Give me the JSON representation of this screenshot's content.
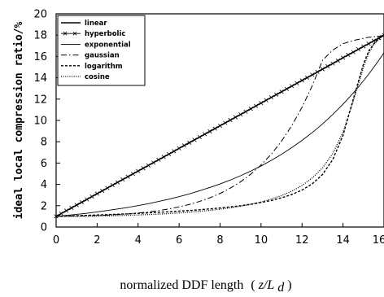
{
  "chart_data": {
    "type": "line",
    "title": "",
    "xlabel": {
      "prefix": "normalized DDF length",
      "open": "(",
      "var": "z/L",
      "sub": "d",
      "close": ")"
    },
    "ylabel": "ideal local compression ratio/%",
    "xlim": [
      0,
      16
    ],
    "ylim": [
      0,
      20
    ],
    "x_ticks": [
      "0",
      "2",
      "4",
      "6",
      "8",
      "10",
      "12",
      "14",
      "16"
    ],
    "y_ticks": [
      "0",
      "2",
      "4",
      "6",
      "8",
      "10",
      "12",
      "14",
      "16",
      "18",
      "20"
    ],
    "grid": false,
    "legend_position": "top-left",
    "x": [
      0,
      0.5,
      1,
      1.5,
      2,
      2.5,
      3,
      3.5,
      4,
      4.5,
      5,
      5.5,
      6,
      6.5,
      7,
      7.5,
      8,
      8.5,
      9,
      9.5,
      10,
      10.5,
      11,
      11.5,
      12,
      12.5,
      13,
      13.5,
      14,
      14.5,
      15,
      15.25,
      15.5,
      15.75,
      16
    ],
    "series": [
      {
        "name": "linear",
        "style": "solid-thick",
        "values": [
          1,
          1.53,
          2.06,
          2.59,
          3.13,
          3.66,
          4.19,
          4.72,
          5.25,
          5.78,
          6.31,
          6.84,
          7.38,
          7.91,
          8.44,
          8.97,
          9.5,
          10.03,
          10.56,
          11.09,
          11.63,
          12.16,
          12.69,
          13.22,
          13.75,
          14.28,
          14.81,
          15.34,
          15.88,
          16.41,
          16.94,
          17.2,
          17.47,
          17.73,
          18
        ]
      },
      {
        "name": "hyperbolic",
        "style": "cross-marker",
        "values": [
          1,
          1.53,
          2.06,
          2.59,
          3.13,
          3.66,
          4.19,
          4.72,
          5.25,
          5.78,
          6.31,
          6.84,
          7.38,
          7.91,
          8.44,
          8.97,
          9.5,
          10.03,
          10.56,
          11.09,
          11.63,
          12.16,
          12.69,
          13.22,
          13.75,
          14.28,
          14.81,
          15.34,
          15.88,
          16.41,
          16.94,
          17.2,
          17.47,
          17.73,
          18
        ]
      },
      {
        "name": "exponential",
        "style": "solid-thin",
        "values": [
          1,
          1.09,
          1.19,
          1.29,
          1.42,
          1.55,
          1.69,
          1.84,
          2.01,
          2.19,
          2.4,
          2.61,
          2.85,
          3.11,
          3.4,
          3.71,
          4.04,
          4.41,
          4.81,
          5.25,
          5.73,
          6.25,
          6.82,
          7.45,
          8.13,
          8.86,
          9.67,
          10.56,
          11.52,
          12.57,
          13.72,
          14.33,
          14.98,
          15.65,
          16.35
        ]
      },
      {
        "name": "gaussian",
        "style": "dashdot",
        "values": [
          1,
          1.02,
          1.03,
          1.05,
          1.08,
          1.12,
          1.17,
          1.23,
          1.31,
          1.41,
          1.54,
          1.7,
          1.89,
          2.12,
          2.4,
          2.74,
          3.15,
          3.65,
          4.24,
          4.96,
          5.82,
          6.84,
          8.06,
          9.51,
          11.23,
          13.26,
          15.65,
          16.6,
          17.2,
          17.5,
          17.7,
          17.8,
          17.85,
          17.9,
          18
        ]
      },
      {
        "name": "logarithm",
        "style": "dashed",
        "values": [
          1,
          1.03,
          1.06,
          1.09,
          1.13,
          1.16,
          1.2,
          1.24,
          1.28,
          1.33,
          1.38,
          1.43,
          1.49,
          1.55,
          1.62,
          1.7,
          1.79,
          1.89,
          2.0,
          2.14,
          2.3,
          2.49,
          2.74,
          3.05,
          3.47,
          4.05,
          4.93,
          6.33,
          8.6,
          12.0,
          15.3,
          16.5,
          17.2,
          17.7,
          18
        ]
      },
      {
        "name": "cosine",
        "style": "dotted",
        "values": [
          1,
          1.0,
          1.01,
          1.02,
          1.03,
          1.05,
          1.07,
          1.1,
          1.13,
          1.17,
          1.21,
          1.26,
          1.32,
          1.39,
          1.47,
          1.56,
          1.67,
          1.8,
          1.95,
          2.13,
          2.35,
          2.62,
          2.95,
          3.36,
          3.9,
          4.6,
          5.55,
          6.9,
          8.9,
          11.8,
          15.0,
          16.3,
          17.1,
          17.6,
          18
        ]
      }
    ]
  }
}
